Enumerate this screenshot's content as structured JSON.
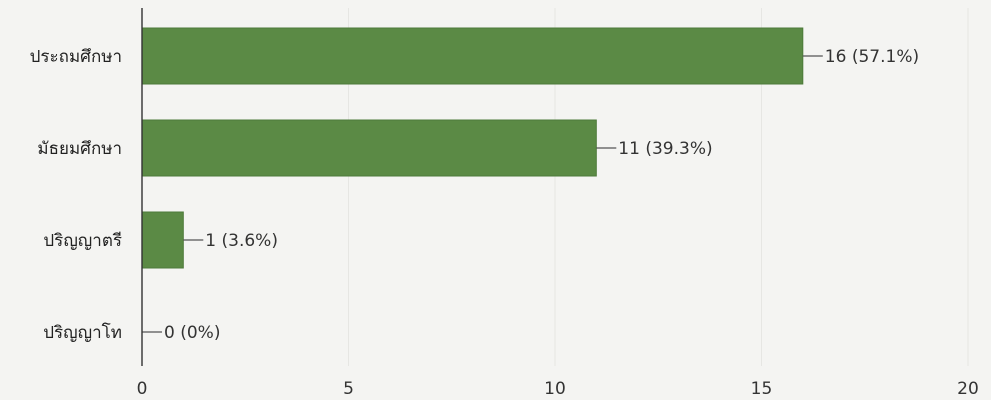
{
  "chart_data": {
    "type": "bar",
    "orientation": "horizontal",
    "categories": [
      "ประถมศึกษา",
      "มัธยมศึกษา",
      "ปริญญาตรี",
      "ปริญญาโท"
    ],
    "values": [
      16,
      11,
      1,
      0
    ],
    "data_labels": [
      "16 (57.1%)",
      "11 (39.3%)",
      "1 (3.6%)",
      "0 (0%)"
    ],
    "xlim": [
      0,
      20
    ],
    "xticks": [
      0,
      5,
      10,
      15,
      20
    ],
    "grid": true,
    "bar_color": "#5b8a45"
  }
}
